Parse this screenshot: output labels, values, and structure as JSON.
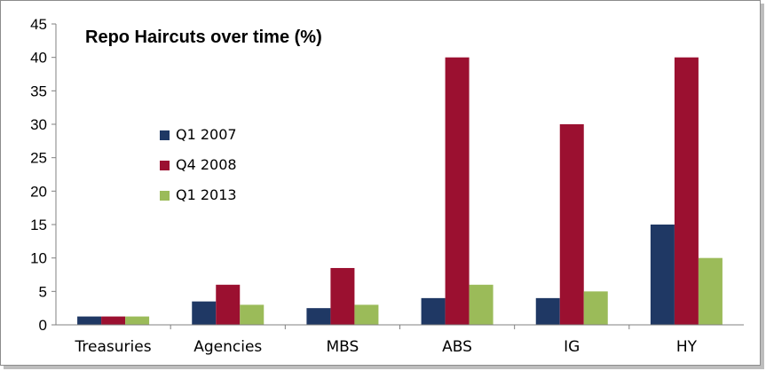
{
  "chart_data": {
    "type": "bar",
    "title": "Repo Haircuts over time (%)",
    "xlabel": "",
    "ylabel": "",
    "categories": [
      "Treasuries",
      "Agencies",
      "MBS",
      "ABS",
      "IG",
      "HY"
    ],
    "series": [
      {
        "name": "Q1 2007",
        "color": "#1F3864",
        "values": [
          1.25,
          3.5,
          2.5,
          4,
          4,
          15
        ]
      },
      {
        "name": "Q4 2008",
        "color": "#9B1030",
        "values": [
          1.25,
          6,
          8.5,
          40,
          30,
          40
        ]
      },
      {
        "name": "Q1 2013",
        "color": "#9BBB59",
        "values": [
          1.25,
          3,
          3,
          6,
          5,
          10
        ]
      }
    ],
    "ylim": [
      0,
      45
    ],
    "yticks": [
      0,
      5,
      10,
      15,
      20,
      25,
      30,
      35,
      40,
      45
    ],
    "grid": false,
    "legend_position": "left-middle"
  }
}
